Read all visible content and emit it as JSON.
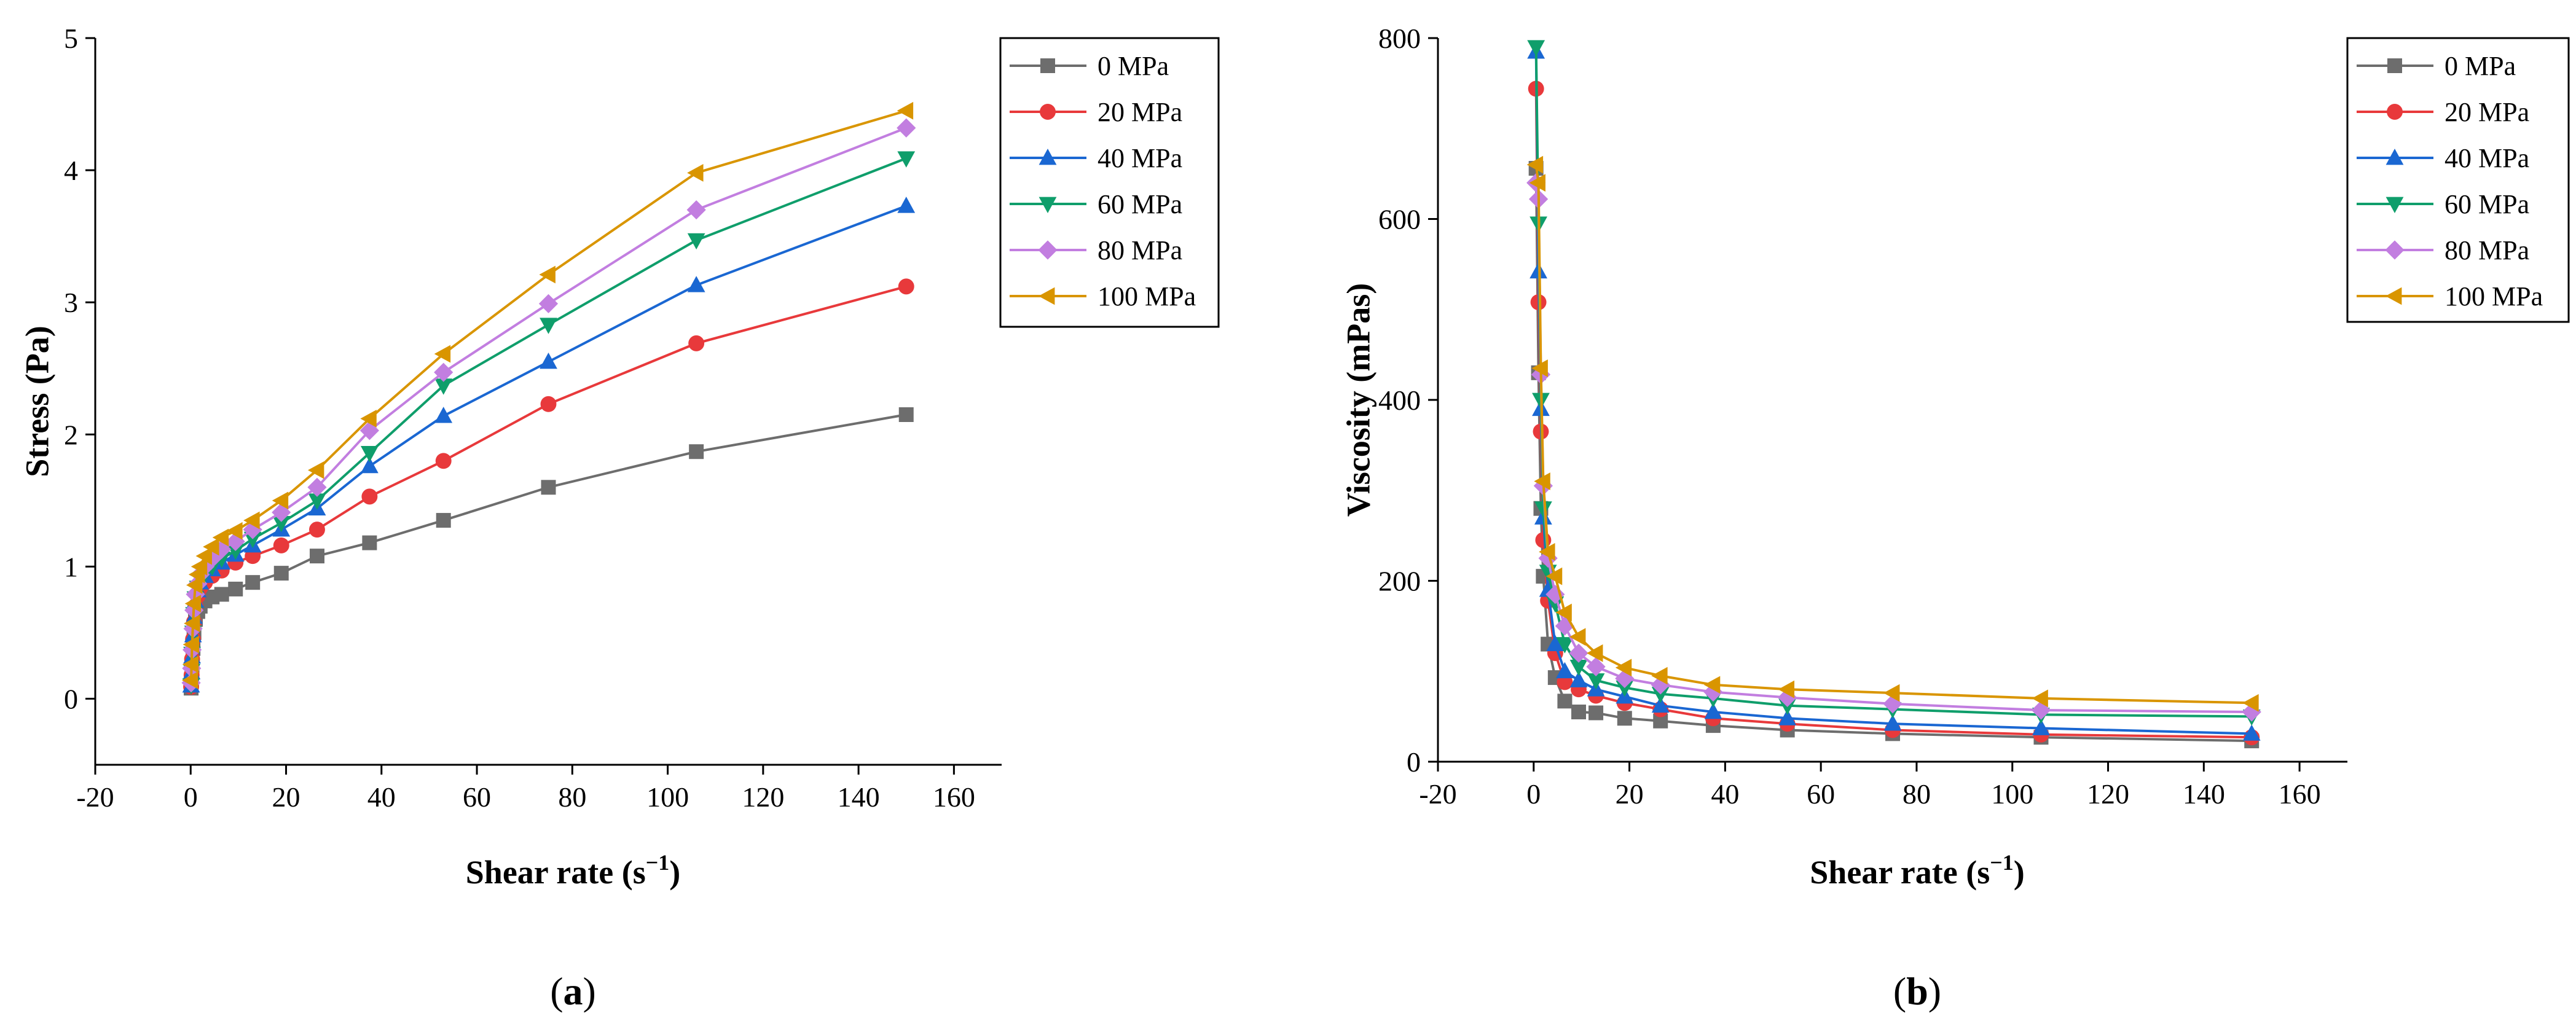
{
  "chart_data": [
    {
      "id": "a",
      "type": "line",
      "panel_label": "a",
      "xlabel": "Shear rate",
      "xunit": "s",
      "xunit_exp": "−1",
      "ylabel": "Stress (Pa)",
      "xlim": [
        -20,
        170
      ],
      "ylim": [
        -0.5,
        5
      ],
      "xticks": [
        -20,
        0,
        20,
        40,
        60,
        80,
        100,
        120,
        140,
        160
      ],
      "yticks": [
        0,
        1,
        2,
        3,
        4,
        5
      ],
      "grid": false,
      "legend": "top-right",
      "x": [
        0.1,
        0.2,
        0.3,
        0.5,
        0.7,
        1,
        1.5,
        2,
        3,
        4.5,
        6.5,
        9.4,
        13,
        19,
        26.5,
        37.5,
        53,
        75,
        106,
        150
      ],
      "series": [
        {
          "name": "0 MPa",
          "color": "#6d6d6d",
          "marker": "square",
          "values": [
            0.08,
            0.15,
            0.25,
            0.38,
            0.5,
            0.6,
            0.66,
            0.7,
            0.74,
            0.77,
            0.79,
            0.83,
            0.88,
            0.95,
            1.08,
            1.18,
            1.35,
            1.6,
            1.87,
            2.15
          ]
        },
        {
          "name": "20 MPa",
          "color": "#e8393b",
          "marker": "circle",
          "values": [
            0.09,
            0.18,
            0.3,
            0.45,
            0.58,
            0.7,
            0.78,
            0.84,
            0.88,
            0.93,
            0.97,
            1.03,
            1.08,
            1.16,
            1.28,
            1.53,
            1.8,
            2.23,
            2.69,
            3.12
          ]
        },
        {
          "name": "40 MPa",
          "color": "#1a67d2",
          "marker": "triangle-up",
          "values": [
            0.1,
            0.2,
            0.32,
            0.48,
            0.62,
            0.74,
            0.82,
            0.88,
            0.93,
            0.98,
            1.03,
            1.09,
            1.16,
            1.28,
            1.44,
            1.76,
            2.14,
            2.55,
            3.13,
            3.73
          ]
        },
        {
          "name": "60 MPa",
          "color": "#0f9e6b",
          "marker": "triangle-down",
          "values": [
            0.1,
            0.21,
            0.34,
            0.5,
            0.64,
            0.76,
            0.84,
            0.9,
            0.95,
            1.0,
            1.06,
            1.12,
            1.21,
            1.33,
            1.5,
            1.86,
            2.37,
            2.83,
            3.47,
            4.09
          ]
        },
        {
          "name": "80 MPa",
          "color": "#c27ee0",
          "marker": "diamond",
          "values": [
            0.12,
            0.23,
            0.37,
            0.53,
            0.67,
            0.79,
            0.87,
            0.94,
            1.0,
            1.06,
            1.13,
            1.19,
            1.28,
            1.41,
            1.6,
            2.03,
            2.47,
            2.99,
            3.7,
            4.32
          ]
        },
        {
          "name": "100 MPa",
          "color": "#d99500",
          "marker": "triangle-left",
          "values": [
            0.14,
            0.26,
            0.41,
            0.57,
            0.72,
            0.86,
            0.94,
            1.0,
            1.08,
            1.15,
            1.22,
            1.27,
            1.35,
            1.5,
            1.73,
            2.12,
            2.61,
            3.21,
            3.98,
            4.45
          ]
        }
      ]
    },
    {
      "id": "b",
      "type": "line",
      "panel_label": "b",
      "xlabel": "Shear rate",
      "xunit": "s",
      "xunit_exp": "−1",
      "ylabel": "Viscosity (mPas)",
      "xlim": [
        -20,
        170
      ],
      "ylim": [
        0,
        800
      ],
      "xticks": [
        -20,
        0,
        20,
        40,
        60,
        80,
        100,
        120,
        140,
        160
      ],
      "yticks": [
        0,
        200,
        400,
        600,
        800
      ],
      "grid": false,
      "legend": "top-right",
      "x": [
        0.5,
        1,
        1.5,
        2,
        3,
        4.5,
        6.5,
        9.4,
        13,
        19,
        26.5,
        37.5,
        53,
        75,
        106,
        150
      ],
      "series": [
        {
          "name": "0 MPa",
          "color": "#6d6d6d",
          "marker": "square",
          "values": [
            656,
            430,
            280,
            205,
            130,
            93,
            67,
            55,
            54,
            48,
            45,
            40,
            35,
            31,
            27,
            23
          ]
        },
        {
          "name": "20 MPa",
          "color": "#e8393b",
          "marker": "circle",
          "values": [
            744,
            508,
            365,
            245,
            178,
            120,
            88,
            80,
            73,
            65,
            58,
            48,
            42,
            35,
            30,
            27
          ]
        },
        {
          "name": "40 MPa",
          "color": "#1a67d2",
          "marker": "triangle-up",
          "values": [
            785,
            542,
            390,
            270,
            190,
            130,
            100,
            90,
            80,
            72,
            62,
            55,
            48,
            42,
            37,
            31
          ]
        },
        {
          "name": "60 MPa",
          "color": "#0f9e6b",
          "marker": "triangle-down",
          "values": [
            790,
            595,
            400,
            280,
            210,
            175,
            130,
            105,
            90,
            82,
            75,
            70,
            62,
            58,
            52,
            50
          ]
        },
        {
          "name": "80 MPa",
          "color": "#c27ee0",
          "marker": "diamond",
          "values": [
            640,
            622,
            428,
            305,
            225,
            185,
            150,
            120,
            105,
            92,
            85,
            77,
            71,
            64,
            57,
            55
          ]
        },
        {
          "name": "100 MPa",
          "color": "#d99500",
          "marker": "triangle-left",
          "values": [
            660,
            640,
            435,
            310,
            232,
            205,
            165,
            138,
            120,
            104,
            95,
            85,
            80,
            76,
            70,
            65
          ]
        }
      ]
    }
  ]
}
